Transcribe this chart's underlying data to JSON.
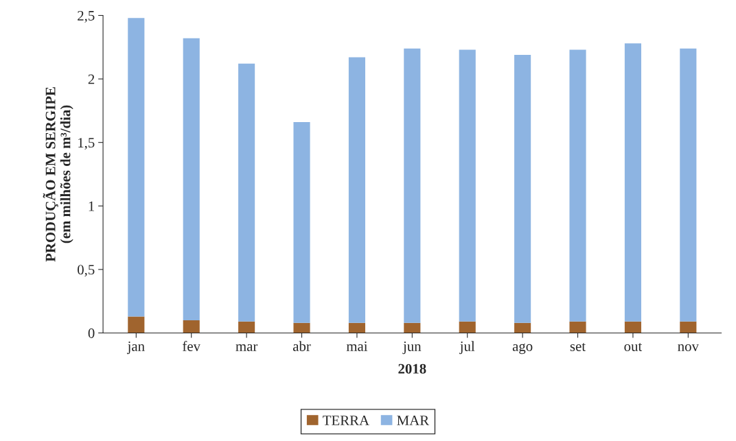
{
  "chart_data": {
    "type": "bar",
    "stacked": true,
    "categories": [
      "jan",
      "fev",
      "mar",
      "abr",
      "mai",
      "jun",
      "jul",
      "ago",
      "set",
      "out",
      "nov"
    ],
    "xlabel": "2018",
    "ylabel": "PRODUÇÃO EM SERGIPE\n(em milhões de m³/dia)",
    "series": [
      {
        "name": "TERRA",
        "color": "#a0642e",
        "values": [
          0.13,
          0.1,
          0.09,
          0.08,
          0.08,
          0.08,
          0.09,
          0.08,
          0.09,
          0.09,
          0.09
        ]
      },
      {
        "name": "MAR",
        "color": "#8db4e2",
        "values": [
          2.35,
          2.22,
          2.03,
          1.58,
          2.09,
          2.16,
          2.14,
          2.11,
          2.14,
          2.19,
          2.15
        ]
      }
    ],
    "ylim": [
      0,
      2.5
    ],
    "yticks": [
      0,
      {
        "value": 0.5,
        "label": "0,5"
      },
      1,
      {
        "value": 1.5,
        "label": "1,5"
      },
      2,
      {
        "value": 2.5,
        "label": "2,5"
      }
    ],
    "grid": false,
    "legend": "bottom"
  }
}
